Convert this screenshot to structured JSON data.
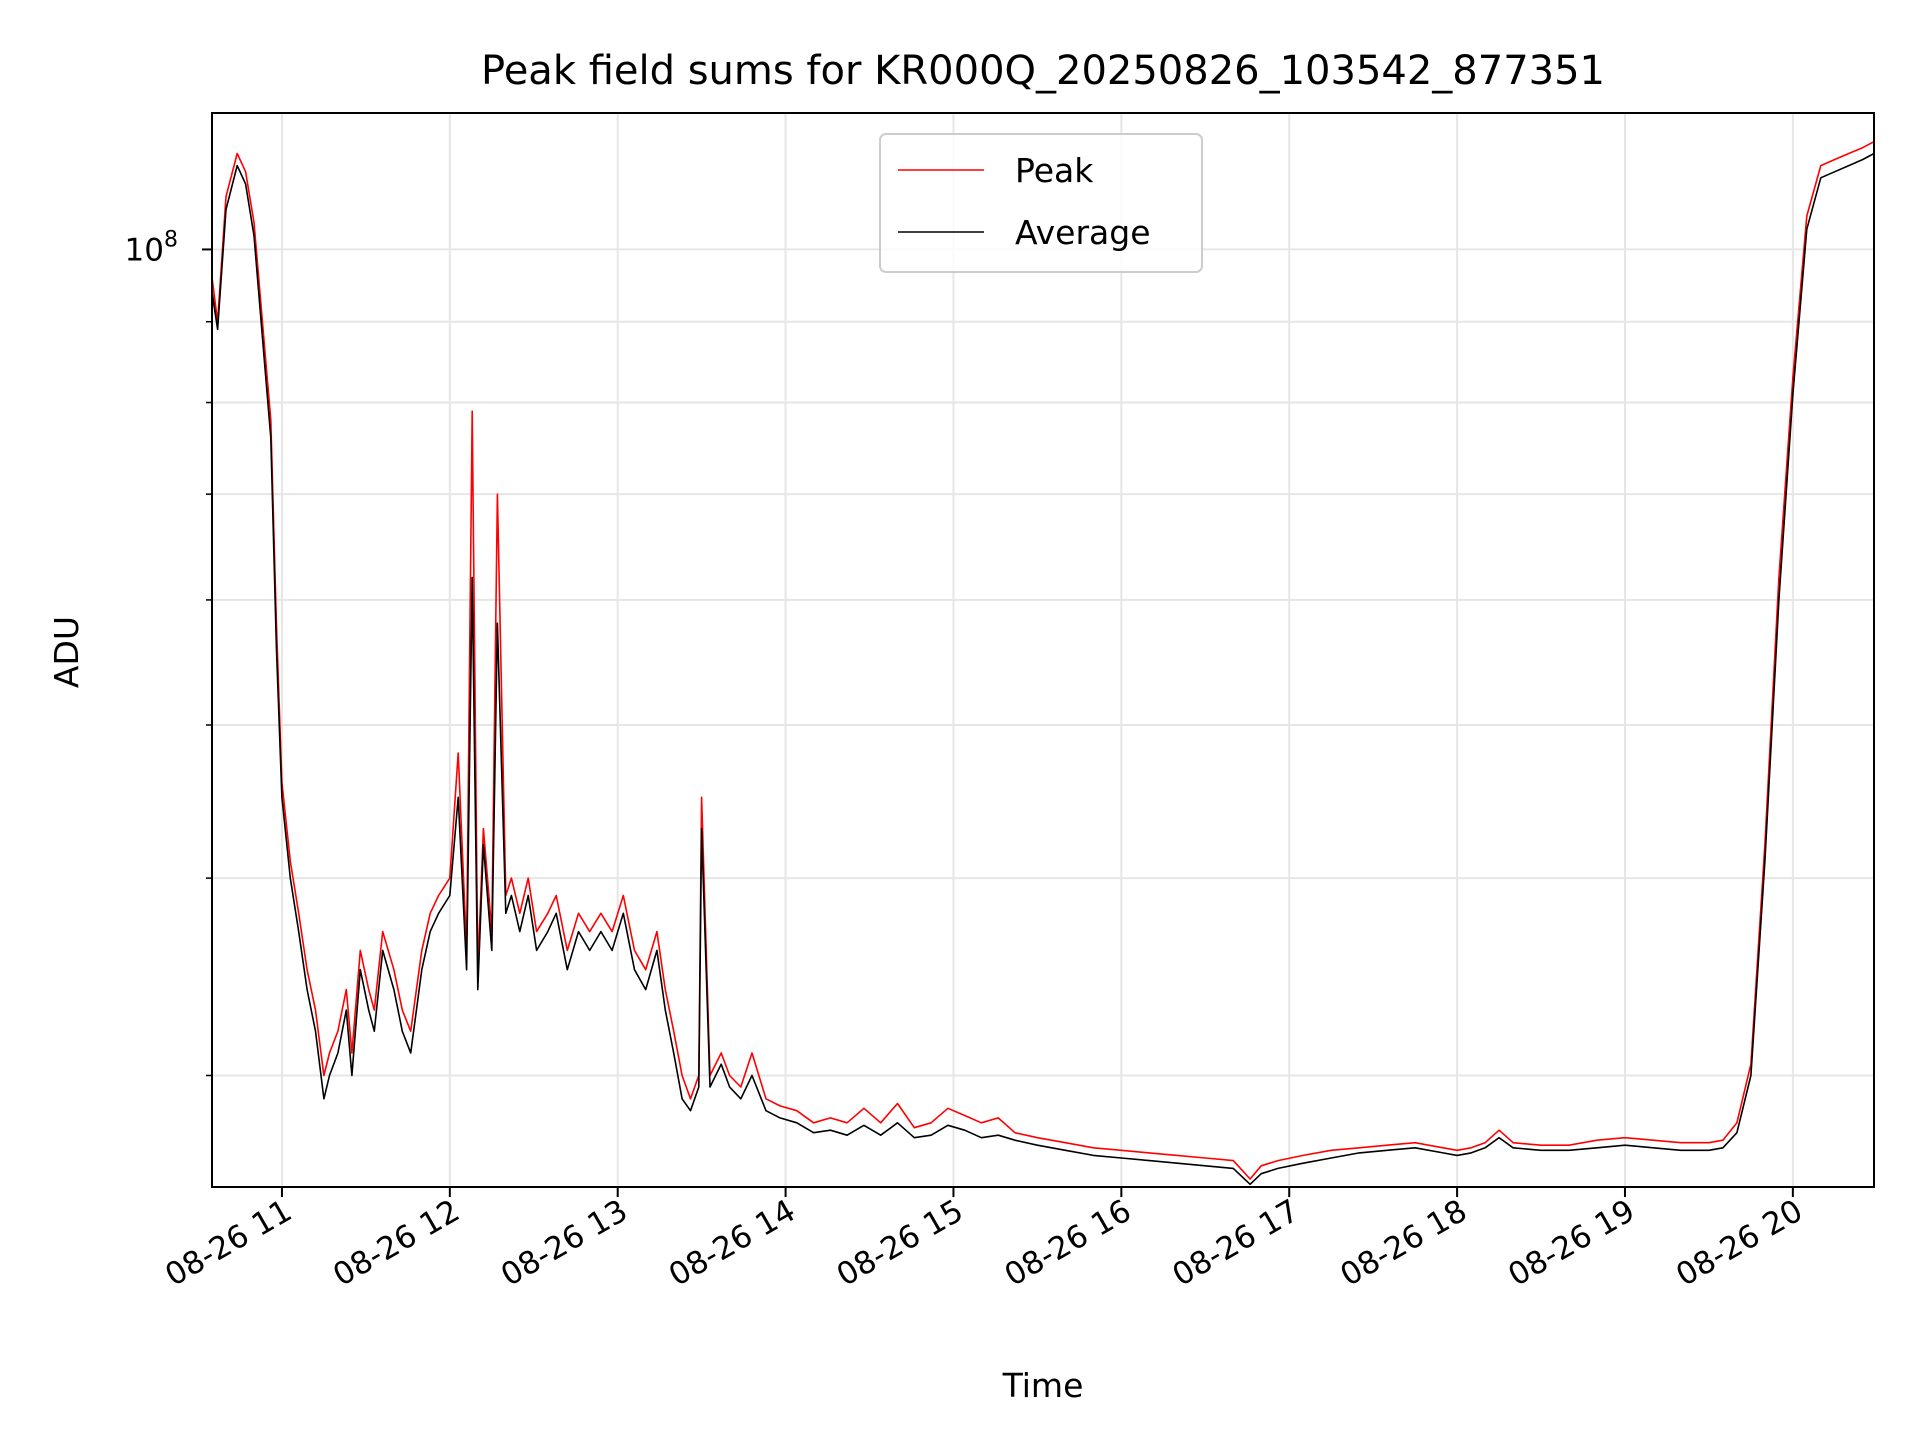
{
  "chart_data": {
    "type": "line",
    "title": "Peak field sums for KR000Q_20250826_103542_877351",
    "xlabel": "Time",
    "ylabel": "ADU",
    "yscale": "log",
    "xlim": [
      "2025-08-26 10:35",
      "2025-08-26 20:29"
    ],
    "ylim": [
      25500000.0,
      122000000.0
    ],
    "x_ticks": [
      "08-26 11",
      "08-26 12",
      "08-26 13",
      "08-26 14",
      "08-26 15",
      "08-26 16",
      "08-26 17",
      "08-26 18",
      "08-26 19",
      "08-26 20"
    ],
    "y_major_tick": {
      "base": "10",
      "exponent": "8"
    },
    "y_minor_ticks": [
      30000000.0,
      40000000.0,
      50000000.0,
      60000000.0,
      70000000.0,
      80000000.0,
      90000000.0
    ],
    "grid": true,
    "legend": {
      "position": "top-center",
      "entries": [
        "Peak",
        "Average"
      ]
    },
    "series": [
      {
        "name": "Peak",
        "color": "#ff0000",
        "x": [
          "10:35",
          "10:37",
          "10:40",
          "10:44",
          "10:47",
          "10:50",
          "10:53",
          "10:56",
          "10:58",
          "11:00",
          "11:03",
          "11:06",
          "11:09",
          "11:12",
          "11:15",
          "11:17",
          "11:20",
          "11:23",
          "11:25",
          "11:28",
          "11:31",
          "11:33",
          "11:36",
          "11:40",
          "11:43",
          "11:46",
          "11:50",
          "11:53",
          "11:56",
          "12:00",
          "12:03",
          "12:06",
          "12:08",
          "12:10",
          "12:12",
          "12:15",
          "12:17",
          "12:20",
          "12:22",
          "12:25",
          "12:28",
          "12:31",
          "12:35",
          "12:38",
          "12:42",
          "12:46",
          "12:50",
          "12:54",
          "12:58",
          "13:02",
          "13:06",
          "13:10",
          "13:14",
          "13:17",
          "13:20",
          "13:23",
          "13:26",
          "13:29",
          "13:30",
          "13:33",
          "13:37",
          "13:40",
          "13:44",
          "13:48",
          "13:53",
          "13:58",
          "14:04",
          "14:10",
          "14:16",
          "14:22",
          "14:28",
          "14:34",
          "14:40",
          "14:46",
          "14:52",
          "14:58",
          "15:04",
          "15:10",
          "15:16",
          "15:22",
          "15:30",
          "15:40",
          "15:50",
          "16:00",
          "16:10",
          "16:20",
          "16:30",
          "16:40",
          "16:46",
          "16:50",
          "16:56",
          "17:05",
          "17:15",
          "17:25",
          "17:35",
          "17:45",
          "17:55",
          "18:00",
          "18:05",
          "18:10",
          "18:15",
          "18:20",
          "18:30",
          "18:40",
          "18:50",
          "19:00",
          "19:10",
          "19:20",
          "19:30",
          "19:35",
          "19:40",
          "19:45",
          "19:50",
          "19:55",
          "20:00",
          "20:05",
          "20:10",
          "20:15",
          "20:20",
          "20:25",
          "20:29"
        ],
        "y": [
          96000000,
          90000000,
          108000000,
          115000000,
          112000000,
          104000000,
          90000000,
          78000000,
          58000000,
          46000000,
          41000000,
          38000000,
          35000000,
          33000000,
          30000000,
          31000000,
          32000000,
          34000000,
          31000000,
          36000000,
          34000000,
          33000000,
          37000000,
          35000000,
          33000000,
          32000000,
          36000000,
          38000000,
          39000000,
          40000000,
          48000000,
          36000000,
          79000000,
          35000000,
          43000000,
          37000000,
          70000000,
          39000000,
          40000000,
          38000000,
          40000000,
          37000000,
          38000000,
          39000000,
          36000000,
          38000000,
          37000000,
          38000000,
          37000000,
          39000000,
          36000000,
          35000000,
          37000000,
          34000000,
          32000000,
          30000000,
          29000000,
          30000000,
          45000000,
          30000000,
          31000000,
          30000000,
          29500000,
          31000000,
          29000000,
          28700000,
          28500000,
          28000000,
          28200000,
          28000000,
          28600000,
          28000000,
          28800000,
          27800000,
          28000000,
          28600000,
          28300000,
          28000000,
          28200000,
          27600000,
          27400000,
          27200000,
          27000000,
          26900000,
          26800000,
          26700000,
          26600000,
          26500000,
          25800000,
          26300000,
          26500000,
          26700000,
          26900000,
          27000000,
          27100000,
          27200000,
          27000000,
          26900000,
          27000000,
          27200000,
          27700000,
          27200000,
          27100000,
          27100000,
          27300000,
          27400000,
          27300000,
          27200000,
          27200000,
          27300000,
          28000000,
          30500000,
          42000000,
          62000000,
          83000000,
          105000000,
          113000000,
          114000000,
          115000000,
          116000000,
          117000000
        ]
      },
      {
        "name": "Average",
        "color": "#000000",
        "x": [
          "10:35",
          "10:37",
          "10:40",
          "10:44",
          "10:47",
          "10:50",
          "10:53",
          "10:56",
          "10:58",
          "11:00",
          "11:03",
          "11:06",
          "11:09",
          "11:12",
          "11:15",
          "11:17",
          "11:20",
          "11:23",
          "11:25",
          "11:28",
          "11:31",
          "11:33",
          "11:36",
          "11:40",
          "11:43",
          "11:46",
          "11:50",
          "11:53",
          "11:56",
          "12:00",
          "12:03",
          "12:06",
          "12:08",
          "12:10",
          "12:12",
          "12:15",
          "12:17",
          "12:20",
          "12:22",
          "12:25",
          "12:28",
          "12:31",
          "12:35",
          "12:38",
          "12:42",
          "12:46",
          "12:50",
          "12:54",
          "12:58",
          "13:02",
          "13:06",
          "13:10",
          "13:14",
          "13:17",
          "13:20",
          "13:23",
          "13:26",
          "13:29",
          "13:30",
          "13:33",
          "13:37",
          "13:40",
          "13:44",
          "13:48",
          "13:53",
          "13:58",
          "14:04",
          "14:10",
          "14:16",
          "14:22",
          "14:28",
          "14:34",
          "14:40",
          "14:46",
          "14:52",
          "14:58",
          "15:04",
          "15:10",
          "15:16",
          "15:22",
          "15:30",
          "15:40",
          "15:50",
          "16:00",
          "16:10",
          "16:20",
          "16:30",
          "16:40",
          "16:46",
          "16:50",
          "16:56",
          "17:05",
          "17:15",
          "17:25",
          "17:35",
          "17:45",
          "17:55",
          "18:00",
          "18:05",
          "18:10",
          "18:15",
          "18:20",
          "18:30",
          "18:40",
          "18:50",
          "19:00",
          "19:10",
          "19:20",
          "19:30",
          "19:35",
          "19:40",
          "19:45",
          "19:50",
          "19:55",
          "20:00",
          "20:05",
          "20:10",
          "20:15",
          "20:20",
          "20:25",
          "20:29"
        ],
        "y": [
          94000000,
          89000000,
          106000000,
          113000000,
          110000000,
          102000000,
          88000000,
          76000000,
          56000000,
          45000000,
          40000000,
          37000000,
          34000000,
          32000000,
          29000000,
          30000000,
          31000000,
          33000000,
          30000000,
          35000000,
          33000000,
          32000000,
          36000000,
          34000000,
          32000000,
          31000000,
          35000000,
          37000000,
          38000000,
          39000000,
          45000000,
          35000000,
          62000000,
          34000000,
          42000000,
          36000000,
          58000000,
          38000000,
          39000000,
          37000000,
          39000000,
          36000000,
          37000000,
          38000000,
          35000000,
          37000000,
          36000000,
          37000000,
          36000000,
          38000000,
          35000000,
          34000000,
          36000000,
          33000000,
          31000000,
          29000000,
          28500000,
          29500000,
          43000000,
          29500000,
          30500000,
          29500000,
          29000000,
          30000000,
          28500000,
          28200000,
          28000000,
          27600000,
          27700000,
          27500000,
          27900000,
          27500000,
          28000000,
          27400000,
          27500000,
          27900000,
          27700000,
          27400000,
          27500000,
          27300000,
          27100000,
          26900000,
          26700000,
          26600000,
          26500000,
          26400000,
          26300000,
          26200000,
          25600000,
          26000000,
          26200000,
          26400000,
          26600000,
          26800000,
          26900000,
          27000000,
          26800000,
          26700000,
          26800000,
          27000000,
          27400000,
          27000000,
          26900000,
          26900000,
          27000000,
          27100000,
          27000000,
          26900000,
          26900000,
          27000000,
          27600000,
          30000000,
          41000000,
          60000000,
          81000000,
          103000000,
          111000000,
          112000000,
          113000000,
          114000000,
          115000000
        ]
      }
    ]
  }
}
